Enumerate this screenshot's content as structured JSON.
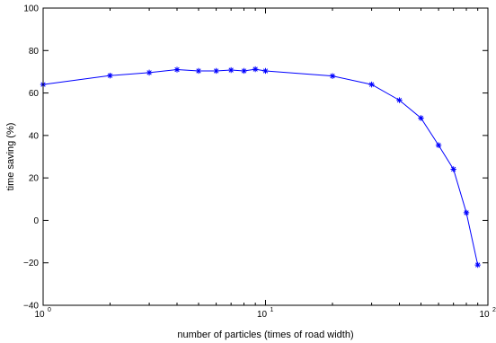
{
  "chart_data": {
    "type": "line",
    "xlabel": "number of particles (times of road width)",
    "ylabel": "time saving (%)",
    "xscale": "log",
    "xlim": [
      1,
      100
    ],
    "ylim": [
      -40,
      100
    ],
    "x_ticks": [
      {
        "base": "10",
        "exp": "0"
      },
      {
        "base": "10",
        "exp": "1"
      },
      {
        "base": "10",
        "exp": "2"
      }
    ],
    "y_ticks": [
      "−40",
      "−20",
      "0",
      "20",
      "40",
      "60",
      "80",
      "100"
    ],
    "grid": false,
    "series": [
      {
        "color": "#0000ff",
        "marker": "asterisk",
        "x": [
          1,
          2,
          3,
          4,
          5,
          6,
          7,
          8,
          9,
          10,
          20,
          30,
          40,
          50,
          60,
          70,
          80,
          90
        ],
        "y": [
          64,
          68.2,
          69.6,
          71,
          70.4,
          70.4,
          70.8,
          70.4,
          71.2,
          70.4,
          68,
          64,
          56.6,
          48.2,
          35.4,
          24.1,
          3.6,
          -21
        ]
      }
    ]
  }
}
